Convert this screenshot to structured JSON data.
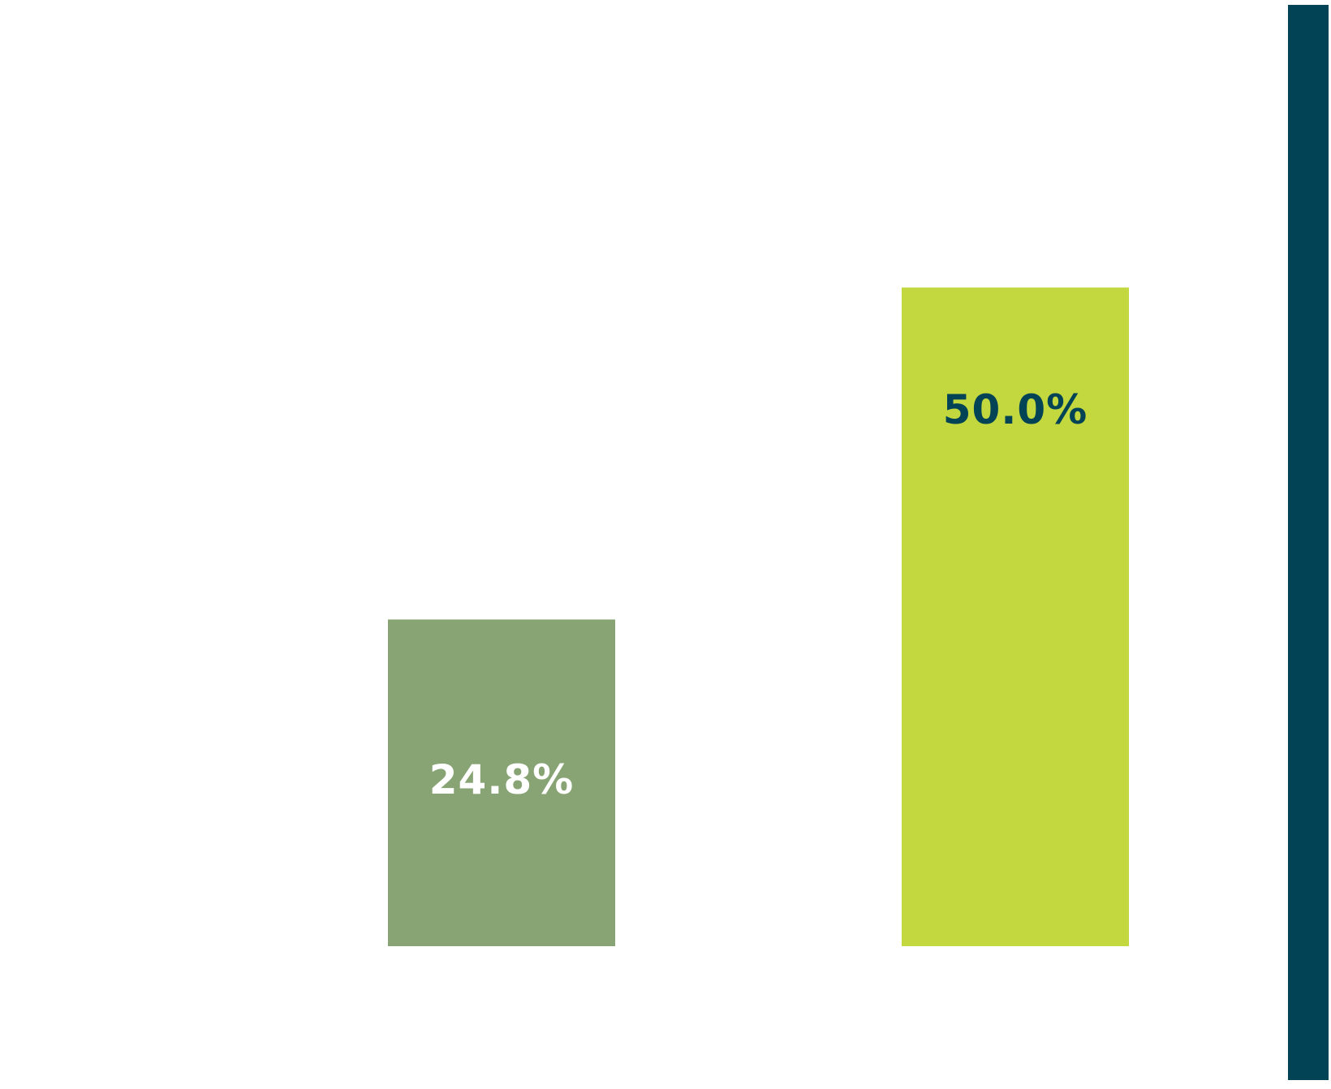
{
  "chart_data": {
    "type": "bar",
    "categories": [
      "",
      ""
    ],
    "values": [
      24.8,
      50.0
    ],
    "data_labels": [
      "24.8%",
      "50.0%"
    ],
    "ylim": [
      0,
      60
    ],
    "grid": false,
    "legend": "none",
    "colors": {
      "bars": [
        "#88a474",
        "#c2d83e"
      ],
      "labels": [
        "#ffffff",
        "#024456"
      ],
      "right_band": "#024456",
      "background": "#ffffff"
    }
  }
}
